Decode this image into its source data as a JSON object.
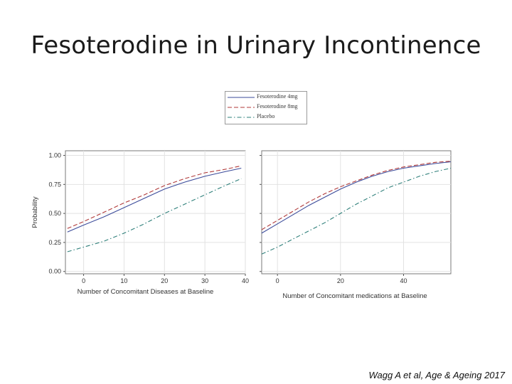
{
  "slide": {
    "title": "Fesoterodine in Urinary Incontinence",
    "citation": "Wagg A et al, Age & Ageing 2017"
  },
  "legend": [
    {
      "label": "Fesoterodine 4mg",
      "color": "#3b4b9a",
      "dash": "solid"
    },
    {
      "label": "Fesoterodine 8mg",
      "color": "#b03a3a",
      "dash": "dashed"
    },
    {
      "label": "Placebo",
      "color": "#2e7f7a",
      "dash": "dash-dot"
    }
  ],
  "chart_data": [
    {
      "type": "line",
      "xlabel": "Number of Concomitant Diseases at Baseline",
      "ylabel": "Probability",
      "xlim": [
        -4.5,
        40
      ],
      "ylim": [
        -0.02,
        1.04
      ],
      "xticks": [
        "0",
        "10",
        "20",
        "30",
        "40"
      ],
      "yticks": [
        "0.00",
        "0.25",
        "0.50",
        "0.75",
        "1.00"
      ],
      "grid": true,
      "x": [
        -4,
        0,
        5,
        10,
        15,
        20,
        25,
        30,
        35,
        39
      ],
      "series": [
        {
          "name": "Fesoterodine 4mg",
          "values": [
            0.34,
            0.4,
            0.47,
            0.55,
            0.63,
            0.71,
            0.77,
            0.82,
            0.86,
            0.89
          ]
        },
        {
          "name": "Fesoterodine 8mg",
          "values": [
            0.37,
            0.43,
            0.51,
            0.59,
            0.66,
            0.74,
            0.8,
            0.85,
            0.88,
            0.91
          ]
        },
        {
          "name": "Placebo",
          "values": [
            0.17,
            0.21,
            0.26,
            0.33,
            0.41,
            0.5,
            0.58,
            0.66,
            0.74,
            0.8
          ]
        }
      ]
    },
    {
      "type": "line",
      "xlabel": "Number of Concomitant medications at Baseline",
      "ylabel": "",
      "xlim": [
        -5,
        55
      ],
      "ylim": [
        -0.02,
        1.04
      ],
      "xticks": [
        "0",
        "20",
        "40"
      ],
      "yticks": [
        "",
        "",
        "",
        "",
        ""
      ],
      "grid": true,
      "x": [
        -5,
        0,
        5,
        10,
        15,
        20,
        25,
        30,
        35,
        40,
        45,
        50,
        55
      ],
      "series": [
        {
          "name": "Fesoterodine 4mg",
          "values": [
            0.33,
            0.41,
            0.49,
            0.57,
            0.64,
            0.71,
            0.77,
            0.82,
            0.86,
            0.89,
            0.91,
            0.93,
            0.945
          ]
        },
        {
          "name": "Fesoterodine 8mg",
          "values": [
            0.36,
            0.44,
            0.52,
            0.6,
            0.67,
            0.73,
            0.78,
            0.83,
            0.87,
            0.9,
            0.92,
            0.94,
            0.95
          ]
        },
        {
          "name": "Placebo",
          "values": [
            0.15,
            0.21,
            0.28,
            0.35,
            0.42,
            0.5,
            0.58,
            0.65,
            0.72,
            0.77,
            0.82,
            0.86,
            0.89
          ]
        }
      ]
    }
  ]
}
